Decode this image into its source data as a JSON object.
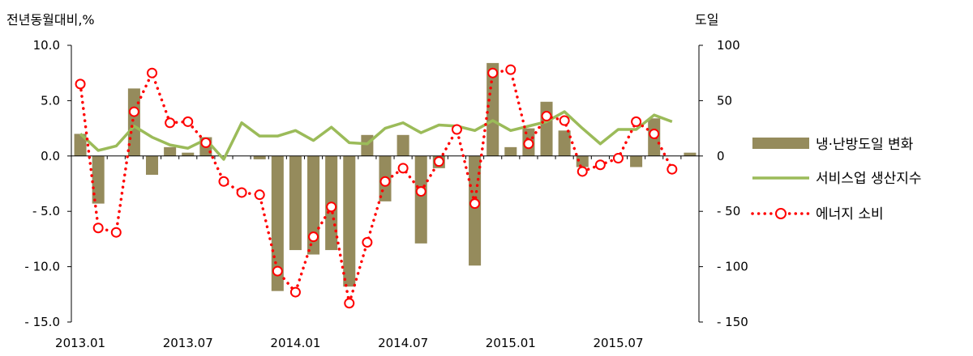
{
  "chart_data": {
    "type": "bar+line",
    "left_axis_label": "전년동월대비,%",
    "right_axis_label": "도일",
    "left_ylim": [
      -15,
      10
    ],
    "right_ylim": [
      -150,
      100
    ],
    "left_ticks": [
      "10.0",
      "5.0",
      "0.0",
      "- 5.0",
      "- 10.0",
      "- 15.0"
    ],
    "left_tick_values": [
      10,
      5,
      0,
      -5,
      -10,
      -15
    ],
    "right_ticks": [
      "100",
      "50",
      "0",
      "- 50",
      "- 100",
      "- 150"
    ],
    "right_tick_values": [
      100,
      50,
      0,
      -50,
      -100,
      -150
    ],
    "x_tick_labels": [
      {
        "index": 0,
        "label": "2013.01"
      },
      {
        "index": 6,
        "label": "2013.07"
      },
      {
        "index": 12,
        "label": "2014.01"
      },
      {
        "index": 18,
        "label": "2014.07"
      },
      {
        "index": 24,
        "label": "2015.01"
      },
      {
        "index": 30,
        "label": "2015.07"
      }
    ],
    "months": [
      "2013.01",
      "2013.02",
      "2013.03",
      "2013.04",
      "2013.05",
      "2013.06",
      "2013.07",
      "2013.08",
      "2013.09",
      "2013.10",
      "2013.11",
      "2013.12",
      "2014.01",
      "2014.02",
      "2014.03",
      "2014.04",
      "2014.05",
      "2014.06",
      "2014.07",
      "2014.08",
      "2014.09",
      "2014.10",
      "2014.11",
      "2014.12",
      "2015.01",
      "2015.02",
      "2015.03",
      "2015.04",
      "2015.05",
      "2015.06",
      "2015.07",
      "2015.08",
      "2015.09",
      "2015.10",
      "2015.11"
    ],
    "series": [
      {
        "name": "냉·난방도일 변화",
        "kind": "bar",
        "axis": "right",
        "color": "#958b5c",
        "values": [
          20,
          -43,
          0,
          61,
          -17,
          8,
          3,
          17,
          0,
          0,
          -3,
          -122,
          -85,
          -89,
          -85,
          -118,
          19,
          -41,
          19,
          -79,
          -11,
          0,
          -99,
          84,
          8,
          25,
          49,
          23,
          -10,
          0,
          0,
          -10,
          34,
          0,
          3
        ]
      },
      {
        "name": "서비스업 생산지수",
        "kind": "line",
        "axis": "left",
        "color": "#9bbb59",
        "values": [
          2.0,
          0.5,
          0.9,
          2.7,
          1.7,
          1.0,
          0.7,
          1.5,
          -0.3,
          3.0,
          1.8,
          1.8,
          2.3,
          1.4,
          2.6,
          1.2,
          1.1,
          2.5,
          3.0,
          2.1,
          2.8,
          2.7,
          2.3,
          3.2,
          2.3,
          2.7,
          3.1,
          4.0,
          2.5,
          1.1,
          2.4,
          2.4,
          3.7,
          3.1
        ]
      },
      {
        "name": "에너지 소비",
        "kind": "line-dotted-markers",
        "axis": "left",
        "color": "#ff0000",
        "values": [
          6.5,
          -6.5,
          -6.9,
          4.0,
          7.5,
          3.0,
          3.1,
          1.2,
          -2.3,
          -3.3,
          -3.5,
          -10.4,
          -12.3,
          -7.3,
          -4.6,
          -13.3,
          -7.8,
          -2.3,
          -1.1,
          -3.2,
          -0.5,
          2.4,
          -4.3,
          7.5,
          7.8,
          1.1,
          3.6,
          3.2,
          -1.4,
          -0.8,
          -0.2,
          3.1,
          2.0,
          -1.2
        ]
      }
    ],
    "legend_position": "right"
  }
}
